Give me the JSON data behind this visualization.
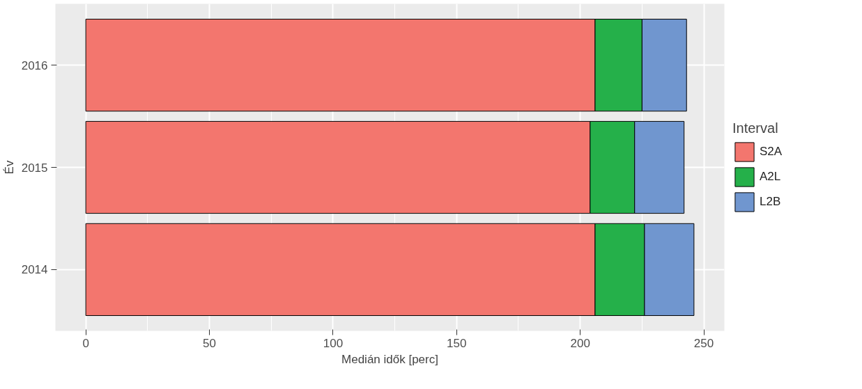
{
  "chart_data": {
    "type": "bar",
    "orientation": "horizontal",
    "stacked": true,
    "xlabel": "Medián idők [perc]",
    "ylabel": "Év",
    "legend_title": "Interval",
    "legend": "right",
    "grid": true,
    "categories": [
      "2016",
      "2015",
      "2014"
    ],
    "series": [
      {
        "name": "S2A",
        "color": "#f3766e",
        "values": [
          206,
          204,
          206
        ]
      },
      {
        "name": "A2L",
        "color": "#25b04a",
        "values": [
          19,
          18,
          20
        ]
      },
      {
        "name": "L2B",
        "color": "#7096cf",
        "values": [
          18,
          20,
          20
        ]
      }
    ],
    "xlim": [
      -12.3,
      258.3
    ],
    "xticks": [
      0,
      50,
      100,
      150,
      200,
      250
    ]
  }
}
